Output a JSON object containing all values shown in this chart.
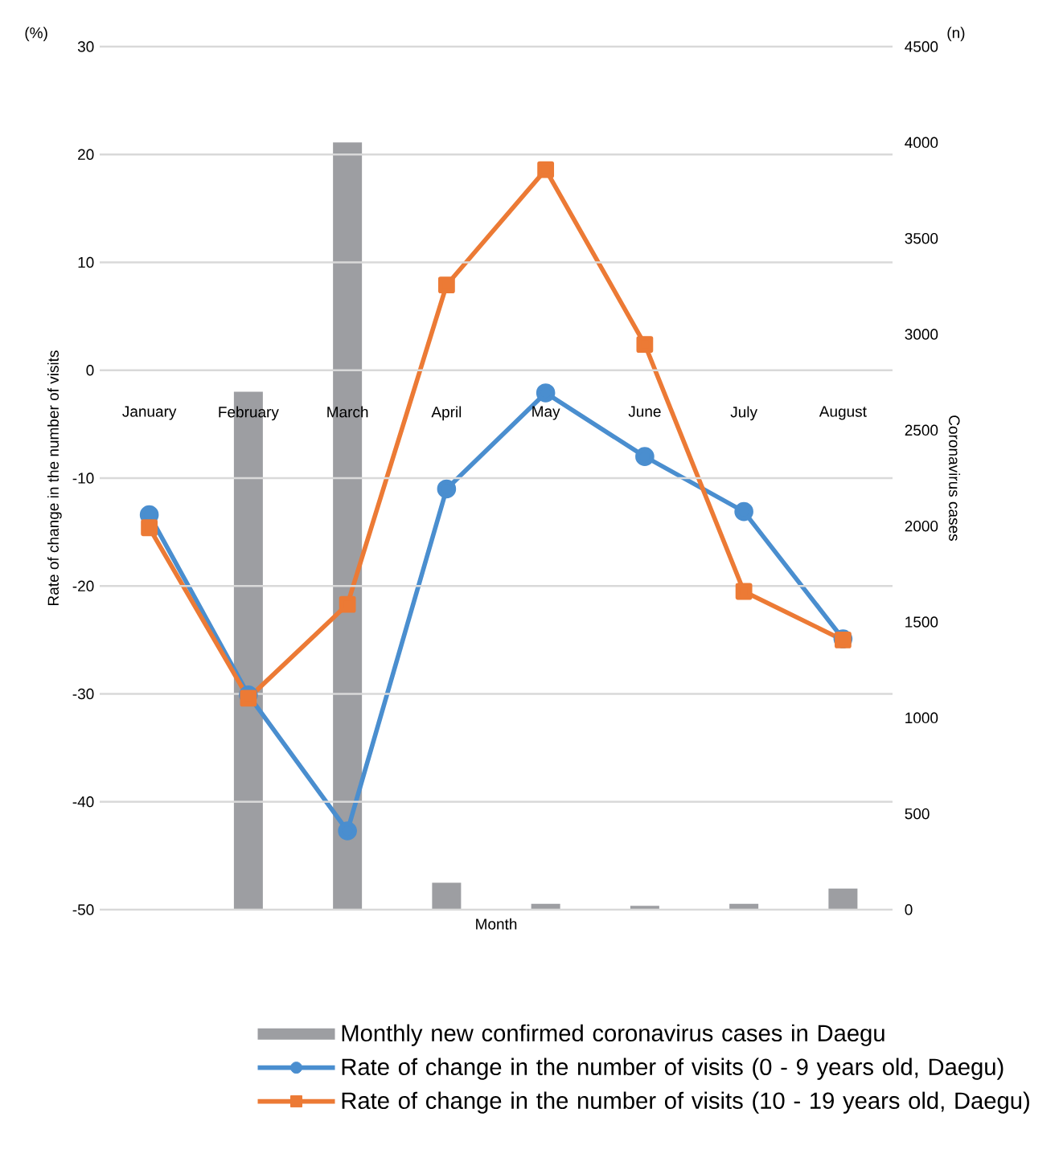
{
  "chart_data": {
    "type": "line",
    "xlabel": "Month",
    "ylabel": "Rate of change in the number of visits",
    "y2label": "Coronavirus cases",
    "annotations": [
      "(%)",
      "(n)"
    ],
    "categories": [
      "January",
      "February",
      "March",
      "April",
      "May",
      "June",
      "July",
      "August"
    ],
    "series": [
      {
        "name": "Monthly new confirmed coronavirus cases in Daegu",
        "type": "bar",
        "axis": "y2",
        "color": "#9d9ea2",
        "values": [
          0,
          2700,
          4000,
          140,
          30,
          20,
          30,
          110
        ]
      },
      {
        "name": "Rate of change in the number of visits (0 - 9 years old, Daegu)",
        "marker": "circle",
        "color": "#4a8ecf",
        "values": [
          -13.4,
          -30.1,
          -42.7,
          -11,
          -2.1,
          -8,
          -13.1,
          -24.9
        ]
      },
      {
        "name": "Rate of change in the number of visits (10 - 19 years old, Daegu)",
        "marker": "square",
        "color": "#ec7a35",
        "values": [
          -14.6,
          -30.4,
          -21.7,
          7.9,
          18.6,
          2.4,
          -20.5,
          -25
        ]
      }
    ],
    "ylim": [
      -50,
      30
    ],
    "yticks": [
      -50,
      -40,
      -30,
      -20,
      -10,
      0,
      10,
      20,
      30
    ],
    "y2lim": [
      0,
      4500
    ],
    "y2ticks": [
      0,
      500,
      1000,
      1500,
      2000,
      2500,
      3000,
      3500,
      4000,
      4500
    ],
    "grid": "y",
    "legend": "bottom"
  }
}
